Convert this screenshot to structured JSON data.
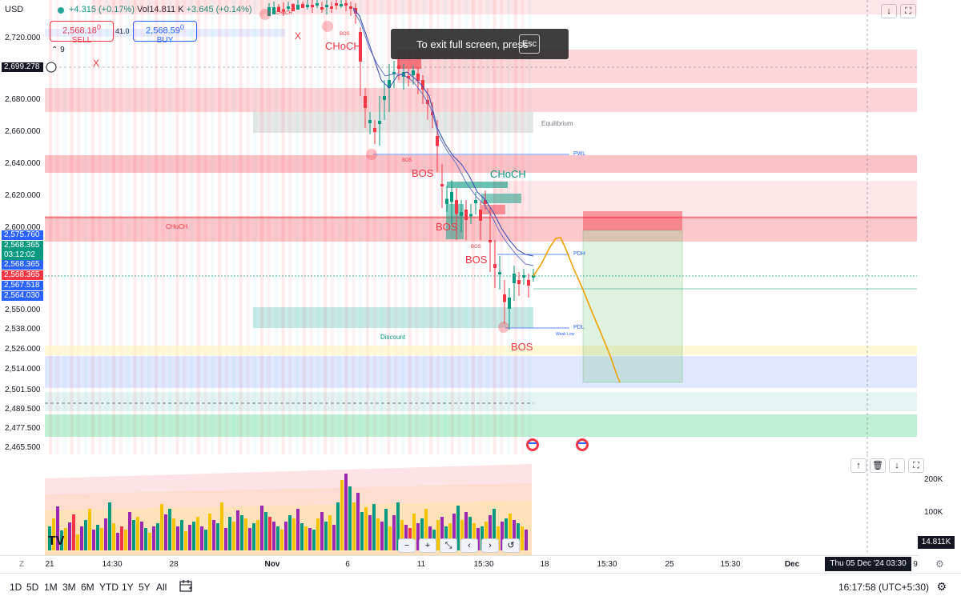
{
  "header": {
    "currency": "USD",
    "change": "+4.315 (+0.17%)",
    "vol_label": "Vol",
    "volume": "14.811 K",
    "vol_change": "+3.645 (+0.14%)"
  },
  "trade": {
    "sell_price": "2,568.18",
    "sell_sup": "0",
    "sell_label": "SELL",
    "spread": "41.0",
    "buy_price": "2,568.59",
    "buy_sup": "0",
    "buy_label": "BUY",
    "indicators_count": "9"
  },
  "fullscreen_toast": {
    "message": "To exit full screen, press",
    "key": "Esc"
  },
  "price_axis": {
    "labels": [
      "2,720.000",
      "2,680.000",
      "2,660.000",
      "2,640.000",
      "2,620.000",
      "2,600.000",
      "2,550.000",
      "2,538.000",
      "2,526.000",
      "2,514.000",
      "2,501.500",
      "2,489.500",
      "2,477.500",
      "2,465.500"
    ],
    "crosshair_price": "2,699.278",
    "tags": [
      {
        "text": "2,575.760",
        "color": "#2962ff"
      },
      {
        "text": "2,568.365",
        "color": "#089981"
      },
      {
        "text": "03:12:02",
        "color": "#089981"
      },
      {
        "text": "2,568.365",
        "color": "#2962ff"
      },
      {
        "text": "2,568.365",
        "color": "#f23645"
      },
      {
        "text": "2,567.518",
        "color": "#2962ff"
      },
      {
        "text": "2,564.030",
        "color": "#2962ff"
      }
    ]
  },
  "annotations": {
    "choch_top": "CHoCH",
    "choch_small_top": "CHoCH",
    "bos_top": "BOS",
    "x_mark_1": "X",
    "x_mark_2": "X",
    "equilibrium": "Equilibrium",
    "pwl": "PWL",
    "bos_small_mid": "BOS",
    "bos_red_1": "BOS",
    "choch_green": "CHoCH",
    "choch_zone": "CHoCH",
    "bos_red_2": "BOS",
    "bos_small_2": "BOS",
    "bos_red_3": "BOS",
    "pdh": "PDH",
    "pdl": "PDL",
    "weak_low": "Weak Low",
    "discount": "Discount",
    "bos_red_4": "BOS"
  },
  "volume_axis": {
    "labels": [
      "200K",
      "100K"
    ],
    "current": "14.811K"
  },
  "time_axis": {
    "labels": [
      "21",
      "14:30",
      "28",
      "Nov",
      "6",
      "11",
      "15:30",
      "18",
      "15:30",
      "25",
      "15:30",
      "Dec",
      "9"
    ],
    "crosshair_date": "Thu 05 Dec '24  03:30",
    "z_label": "Z"
  },
  "bottom_bar": {
    "ranges": [
      "1D",
      "5D",
      "1M",
      "3M",
      "6M",
      "YTD",
      "1Y",
      "5Y",
      "All"
    ],
    "clock": "16:17:58 (UTC+5:30)"
  },
  "zoom_controls": [
    "−",
    "+",
    "⤡",
    "‹",
    "›",
    "↺"
  ],
  "colors": {
    "bull": "#089981",
    "bear": "#f23645",
    "accent": "#2962ff",
    "projection": "#f0a000",
    "purple": "#9c27b0",
    "yellow": "#f5c400"
  }
}
